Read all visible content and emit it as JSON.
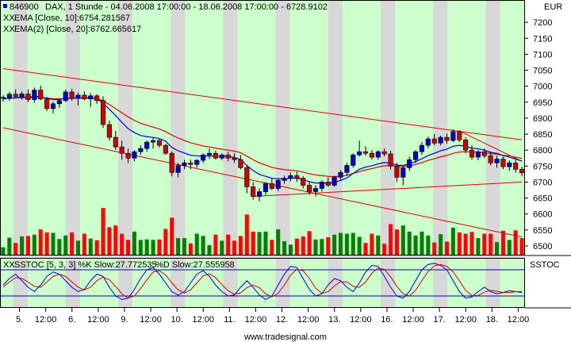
{
  "chart_data": [
    {
      "type": "candlestick",
      "instrument_code": "846900",
      "title": "DAX, 1 Stunde - 04.06.2008 17:00:00 - 18.06.2008 17:00:00 - 6728.9102",
      "currency": "EUR",
      "ylim": [
        6480,
        7260
      ],
      "y_ticks": [
        "7200",
        "7150",
        "7100",
        "7050",
        "7000",
        "6950",
        "6900",
        "6850",
        "6800",
        "6750",
        "6700",
        "6650",
        "6600",
        "6550",
        "6500"
      ],
      "x_ticks": [
        "5.",
        "12:00",
        "6.",
        "12:00",
        "9.",
        "12:00",
        "10.",
        "12:00",
        "11.",
        "12:00",
        "12.",
        "12:00",
        "13.",
        "12:00",
        "16.",
        "12:00",
        "17.",
        "12:00",
        "18.",
        "12:00"
      ],
      "legend": [
        {
          "prefix": "XX",
          "text": "EMA [Close, 10]:6754.281567",
          "color": "#0000cc"
        },
        {
          "prefix": "XX",
          "text": "EMA(2) [Close, 20]:6762.665617",
          "color": "#cc0000"
        }
      ],
      "ohlc": [
        [
          6963,
          6972,
          6952,
          6965
        ],
        [
          6965,
          6982,
          6955,
          6975
        ],
        [
          6975,
          6990,
          6962,
          6968
        ],
        [
          6968,
          6984,
          6958,
          6976
        ],
        [
          6976,
          6990,
          6950,
          6958
        ],
        [
          6958,
          6996,
          6948,
          6988
        ],
        [
          6988,
          7002,
          6956,
          6960
        ],
        [
          6960,
          6966,
          6922,
          6930
        ],
        [
          6930,
          6952,
          6915,
          6945
        ],
        [
          6945,
          6962,
          6932,
          6955
        ],
        [
          6955,
          6990,
          6950,
          6982
        ],
        [
          6982,
          6992,
          6954,
          6962
        ],
        [
          6962,
          6980,
          6940,
          6972
        ],
        [
          6972,
          6984,
          6956,
          6960
        ],
        [
          6960,
          6978,
          6935,
          6970
        ],
        [
          6970,
          6975,
          6945,
          6955
        ],
        [
          6955,
          6968,
          6870,
          6880
        ],
        [
          6880,
          6892,
          6830,
          6840
        ],
        [
          6840,
          6860,
          6800,
          6810
        ],
        [
          6810,
          6830,
          6770,
          6790
        ],
        [
          6790,
          6805,
          6760,
          6775
        ],
        [
          6775,
          6800,
          6765,
          6795
        ],
        [
          6795,
          6815,
          6785,
          6805
        ],
        [
          6805,
          6830,
          6795,
          6825
        ],
        [
          6825,
          6840,
          6805,
          6830
        ],
        [
          6830,
          6836,
          6808,
          6815
        ],
        [
          6815,
          6820,
          6785,
          6790
        ],
        [
          6790,
          6796,
          6718,
          6730
        ],
        [
          6730,
          6760,
          6715,
          6752
        ],
        [
          6752,
          6770,
          6740,
          6760
        ],
        [
          6760,
          6770,
          6740,
          6755
        ],
        [
          6755,
          6772,
          6745,
          6768
        ],
        [
          6768,
          6790,
          6760,
          6785
        ],
        [
          6785,
          6805,
          6772,
          6790
        ],
        [
          6790,
          6798,
          6770,
          6775
        ],
        [
          6775,
          6790,
          6768,
          6785
        ],
        [
          6785,
          6795,
          6765,
          6775
        ],
        [
          6775,
          6790,
          6760,
          6770
        ],
        [
          6770,
          6785,
          6740,
          6745
        ],
        [
          6745,
          6752,
          6665,
          6685
        ],
        [
          6685,
          6700,
          6645,
          6655
        ],
        [
          6655,
          6680,
          6640,
          6670
        ],
        [
          6670,
          6700,
          6660,
          6695
        ],
        [
          6695,
          6710,
          6675,
          6680
        ],
        [
          6680,
          6710,
          6672,
          6705
        ],
        [
          6705,
          6720,
          6695,
          6712
        ],
        [
          6712,
          6730,
          6702,
          6720
        ],
        [
          6720,
          6732,
          6700,
          6712
        ],
        [
          6712,
          6718,
          6680,
          6690
        ],
        [
          6690,
          6700,
          6660,
          6670
        ],
        [
          6670,
          6690,
          6655,
          6680
        ],
        [
          6680,
          6705,
          6670,
          6700
        ],
        [
          6700,
          6715,
          6685,
          6690
        ],
        [
          6690,
          6720,
          6685,
          6715
        ],
        [
          6715,
          6738,
          6705,
          6730
        ],
        [
          6730,
          6760,
          6720,
          6752
        ],
        [
          6752,
          6790,
          6745,
          6785
        ],
        [
          6785,
          6830,
          6780,
          6795
        ],
        [
          6795,
          6812,
          6782,
          6790
        ],
        [
          6790,
          6800,
          6770,
          6778
        ],
        [
          6778,
          6800,
          6770,
          6795
        ],
        [
          6795,
          6805,
          6780,
          6788
        ],
        [
          6788,
          6798,
          6740,
          6750
        ],
        [
          6750,
          6760,
          6700,
          6715
        ],
        [
          6715,
          6750,
          6690,
          6745
        ],
        [
          6745,
          6780,
          6735,
          6770
        ],
        [
          6770,
          6800,
          6760,
          6795
        ],
        [
          6795,
          6825,
          6785,
          6815
        ],
        [
          6815,
          6842,
          6805,
          6835
        ],
        [
          6835,
          6850,
          6815,
          6822
        ],
        [
          6822,
          6845,
          6815,
          6840
        ],
        [
          6840,
          6852,
          6820,
          6830
        ],
        [
          6830,
          6865,
          6825,
          6858
        ],
        [
          6858,
          6862,
          6825,
          6832
        ],
        [
          6832,
          6840,
          6790,
          6800
        ],
        [
          6800,
          6815,
          6770,
          6778
        ],
        [
          6778,
          6800,
          6768,
          6795
        ],
        [
          6795,
          6805,
          6775,
          6782
        ],
        [
          6782,
          6795,
          6752,
          6760
        ],
        [
          6760,
          6782,
          6745,
          6772
        ],
        [
          6772,
          6780,
          6740,
          6748
        ],
        [
          6748,
          6768,
          6735,
          6760
        ],
        [
          6760,
          6770,
          6730,
          6740
        ],
        [
          6740,
          6748,
          6718,
          6729
        ]
      ],
      "ema_10": [
        6960,
        6963,
        6964,
        6966,
        6965,
        6968,
        6967,
        6962,
        6958,
        6958,
        6963,
        6962,
        6964,
        6963,
        6964,
        6962,
        6947,
        6928,
        6908,
        6887,
        6867,
        6855,
        6846,
        6842,
        6840,
        6836,
        6828,
        6808,
        6798,
        6791,
        6784,
        6782,
        6781,
        6782,
        6780,
        6781,
        6780,
        6777,
        6771,
        6752,
        6736,
        6724,
        6718,
        6712,
        6710,
        6710,
        6712,
        6712,
        6708,
        6701,
        6697,
        6697,
        6696,
        6699,
        6705,
        6713,
        6727,
        6740,
        6747,
        6751,
        6757,
        6761,
        6759,
        6753,
        6752,
        6757,
        6764,
        6773,
        6783,
        6790,
        6798,
        6803,
        6812,
        6815,
        6812,
        6806,
        6804,
        6800,
        6793,
        6790,
        6783,
        6778,
        6772,
        6766
      ],
      "ema_20": [
        6960,
        6962,
        6963,
        6964,
        6964,
        6966,
        6966,
        6963,
        6961,
        6960,
        6962,
        6962,
        6963,
        6963,
        6963,
        6962,
        6954,
        6943,
        6930,
        6917,
        6904,
        6893,
        6884,
        6878,
        6872,
        6866,
        6858,
        6847,
        6838,
        6830,
        6823,
        6818,
        6813,
        6810,
        6806,
        6803,
        6800,
        6797,
        6792,
        6781,
        6770,
        6760,
        6753,
        6746,
        6742,
        6739,
        6737,
        6735,
        6731,
        6726,
        6722,
        6720,
        6718,
        6717,
        6718,
        6721,
        6727,
        6733,
        6738,
        6742,
        6747,
        6751,
        6752,
        6749,
        6749,
        6751,
        6755,
        6761,
        6768,
        6773,
        6779,
        6783,
        6790,
        6794,
        6795,
        6794,
        6794,
        6792,
        6789,
        6787,
        6784,
        6782,
        6778,
        6774
      ],
      "trendlines": [
        {
          "from": [
            0,
            7055
          ],
          "to": [
            83,
            6832
          ]
        },
        {
          "from": [
            0,
            6870
          ],
          "to": [
            83,
            6528
          ]
        },
        {
          "from": [
            40,
            6655
          ],
          "to": [
            83,
            6700
          ]
        },
        {
          "from": [
            73,
            6860
          ],
          "to": [
            83,
            6765
          ]
        }
      ],
      "volume_max_index": 83
    },
    {
      "type": "line",
      "title": "SSTOC [5, 3, 3]",
      "legend": [
        {
          "prefix": "XX",
          "text": "SSTOC [5, 3, 3] %K Slow:27.772535",
          "color": "#0000cc"
        },
        {
          "prefix": "",
          "text": "%D Slow:27.555958",
          "color": "#cc0000"
        }
      ],
      "panel_label": "SSTOC",
      "ylim": [
        0,
        100
      ],
      "levels": [
        80,
        20
      ],
      "series": [
        {
          "values": [
            45,
            60,
            70,
            55,
            40,
            30,
            45,
            65,
            75,
            70,
            55,
            40,
            30,
            35,
            55,
            70,
            65,
            40,
            20,
            12,
            15,
            35,
            60,
            80,
            85,
            70,
            50,
            30,
            22,
            30,
            50,
            70,
            78,
            65,
            45,
            30,
            20,
            22,
            40,
            55,
            40,
            22,
            12,
            20,
            45,
            70,
            88,
            85,
            60,
            35,
            20,
            25,
            45,
            60,
            55,
            40,
            30,
            50,
            75,
            90,
            88,
            65,
            40,
            20,
            15,
            30,
            55,
            80,
            92,
            95,
            90,
            80,
            55,
            30,
            15,
            18,
            30,
            40,
            30,
            25,
            28,
            32,
            30,
            28
          ]
        },
        {
          "values": [
            40,
            52,
            62,
            60,
            52,
            42,
            40,
            52,
            65,
            70,
            65,
            52,
            40,
            34,
            40,
            55,
            63,
            57,
            42,
            25,
            15,
            20,
            37,
            57,
            75,
            78,
            68,
            50,
            34,
            27,
            34,
            50,
            66,
            71,
            62,
            46,
            32,
            24,
            27,
            39,
            45,
            39,
            25,
            18,
            26,
            45,
            68,
            81,
            78,
            60,
            38,
            26,
            30,
            43,
            53,
            52,
            42,
            40,
            52,
            72,
            84,
            81,
            64,
            42,
            25,
            20,
            33,
            55,
            76,
            89,
            92,
            88,
            75,
            55,
            33,
            21,
            21,
            29,
            33,
            31,
            28,
            28,
            30,
            30
          ]
        }
      ]
    }
  ],
  "footer": {
    "watermark": "www.tradesignal.com"
  }
}
